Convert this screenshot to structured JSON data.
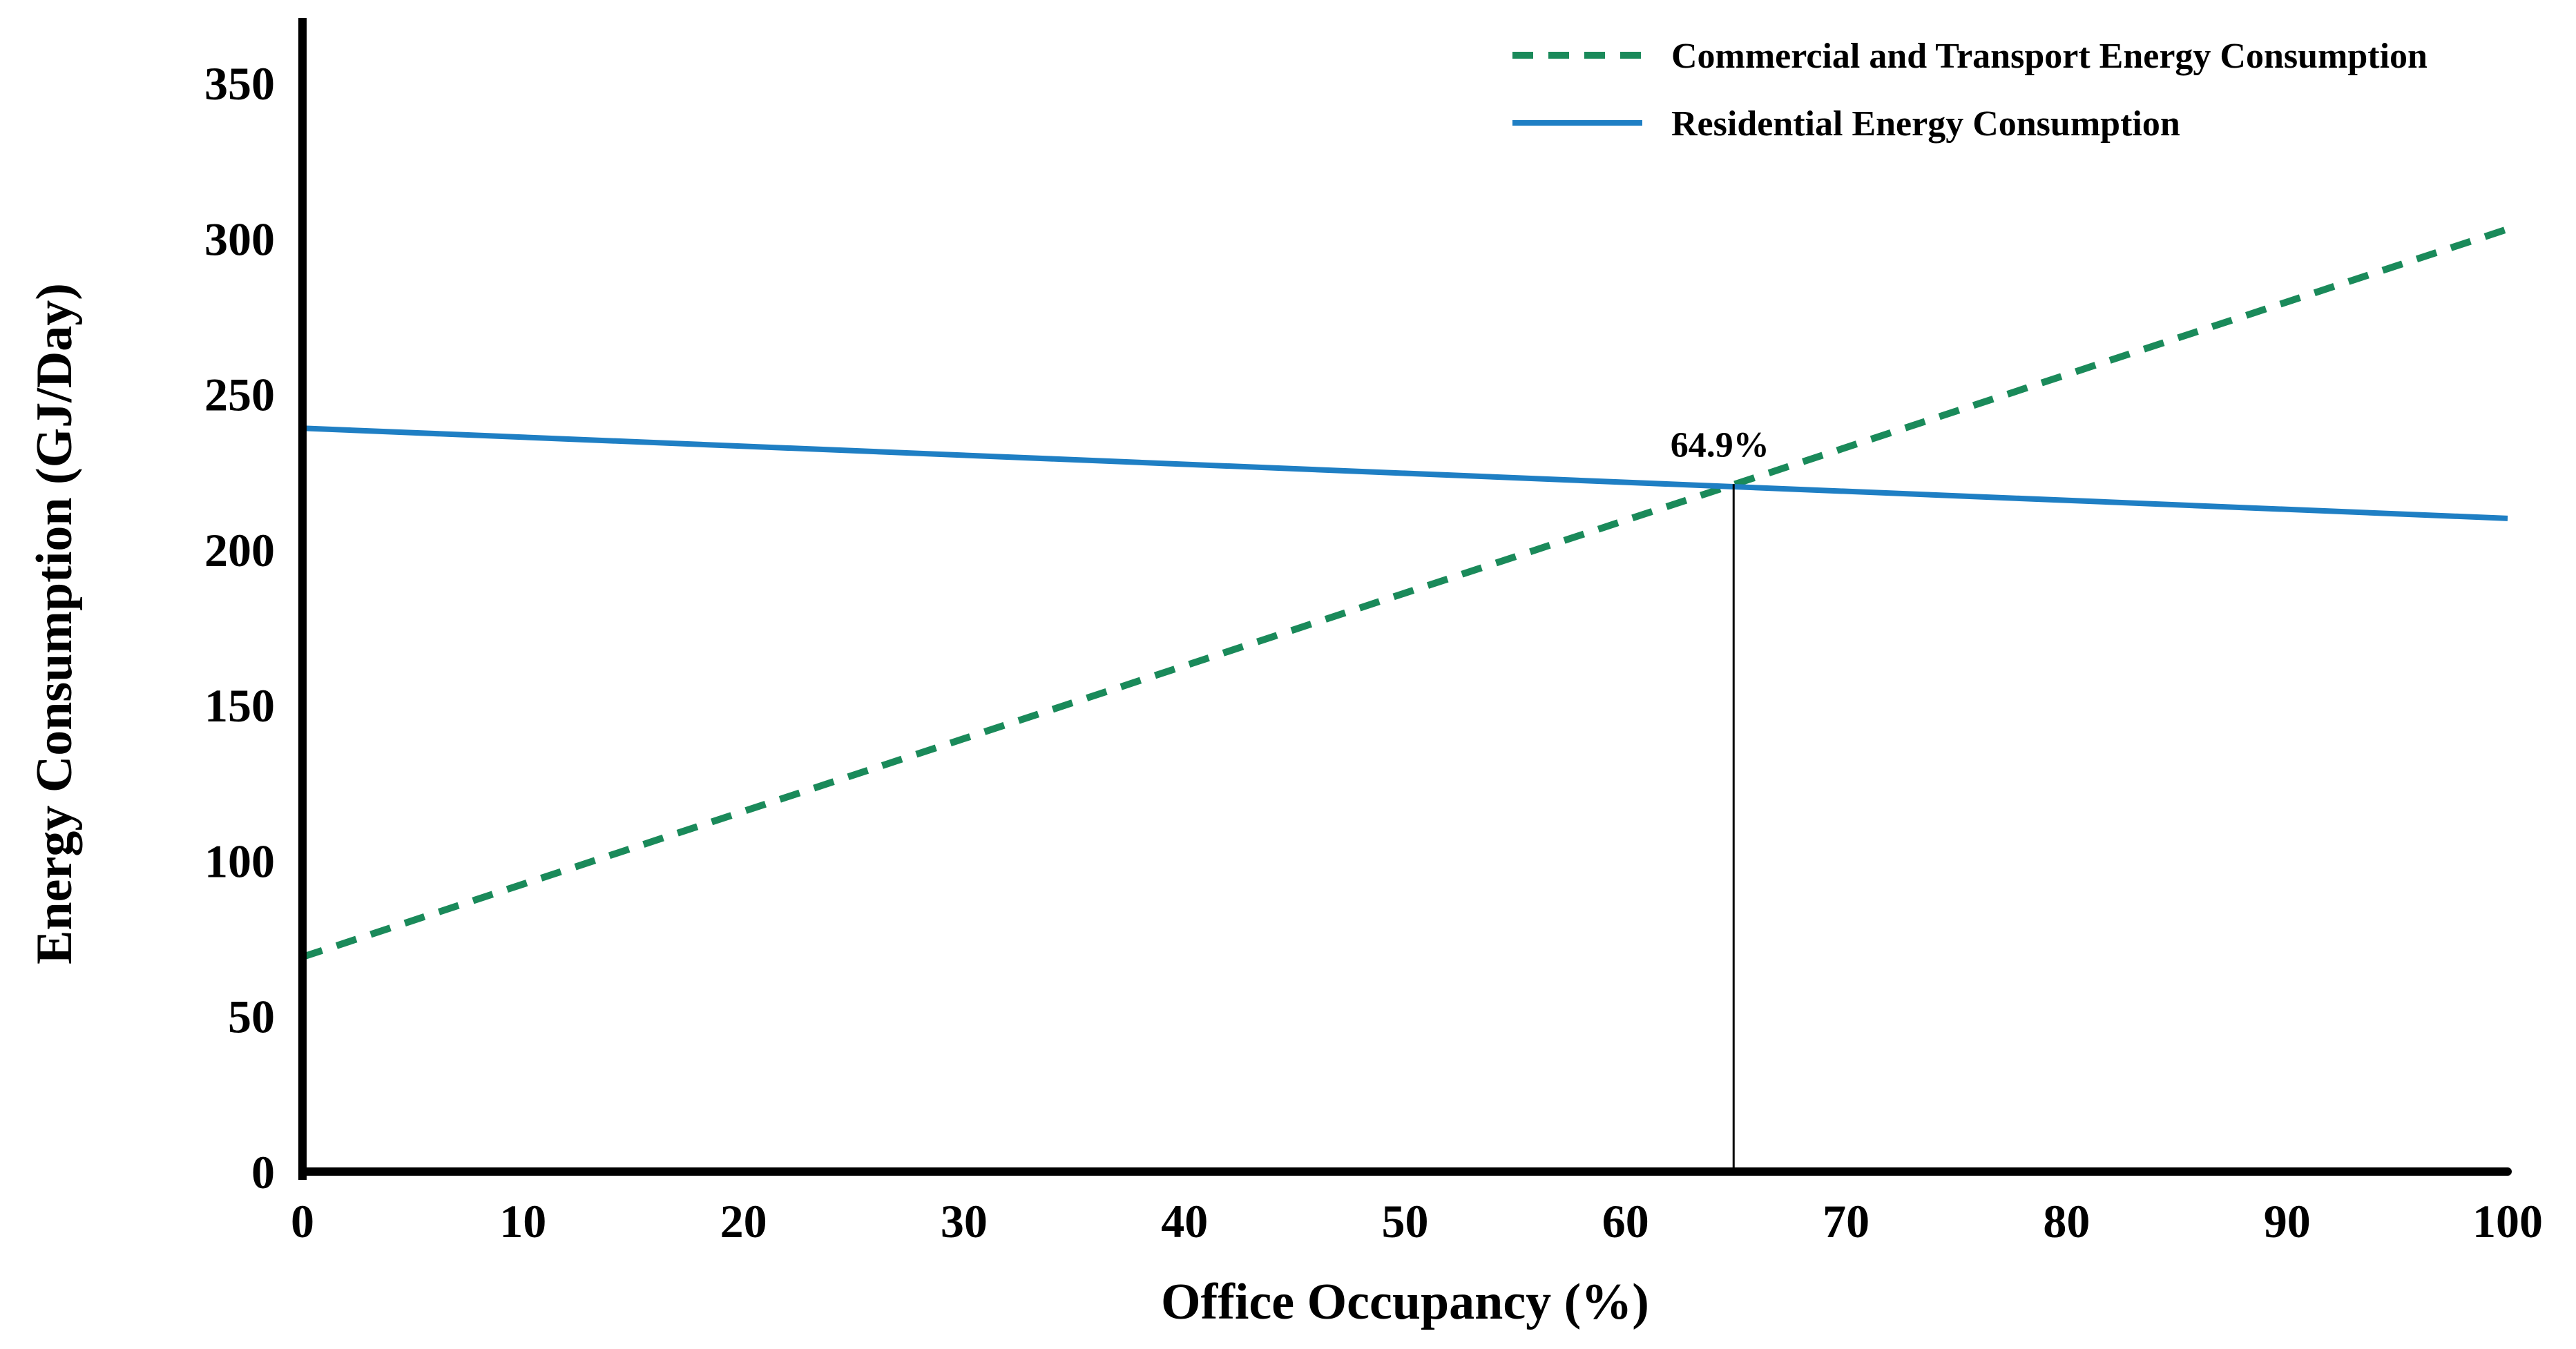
{
  "chart_data": {
    "type": "line",
    "title": "",
    "xlabel": "Office Occupancy (%)",
    "ylabel": "Energy Consumption (GJ/Day)",
    "xlim": [
      0,
      100
    ],
    "ylim": [
      0,
      370
    ],
    "xticks": [
      0,
      10,
      20,
      30,
      40,
      50,
      60,
      70,
      80,
      90,
      100
    ],
    "yticks": [
      0,
      50,
      100,
      150,
      200,
      250,
      300,
      350
    ],
    "grid": false,
    "legend_position": "top-right",
    "series": [
      {
        "name": "Commercial and Transport Energy Consumption",
        "style": "dashed",
        "color": "#1a8a5a",
        "x": [
          0,
          100
        ],
        "y": [
          69,
          303
        ]
      },
      {
        "name": "Residential Energy Consumption",
        "style": "solid",
        "color": "#1f7fc4",
        "x": [
          0,
          100
        ],
        "y": [
          239,
          210
        ]
      }
    ],
    "annotations": [
      {
        "label": "64.9%",
        "x": 64.9,
        "y": 221,
        "type": "vertical-line"
      }
    ]
  }
}
